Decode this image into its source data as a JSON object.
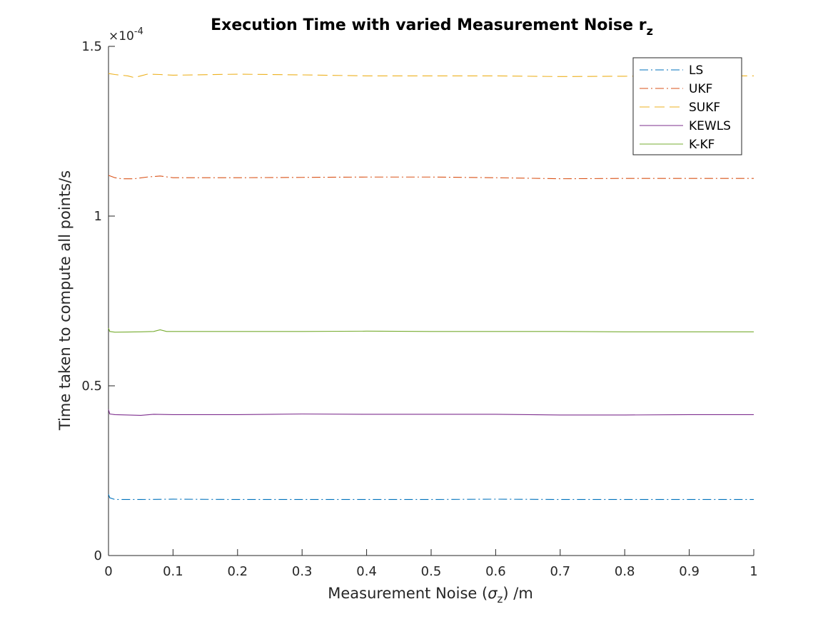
{
  "chart_data": {
    "type": "line",
    "title": "Execution Time with varied Measurement Noise r",
    "title_subscript": "z",
    "xlabel_pre": "Measurement Noise (",
    "xlabel_sigma": "σ",
    "xlabel_sub": "z",
    "xlabel_post": ") /m",
    "ylabel": "Time taken to compute all points/s",
    "exponent_prefix": "×10",
    "exponent_power": "-4",
    "xlim": [
      0,
      1
    ],
    "ylim": [
      0,
      1.5
    ],
    "y_scale_factor": 0.0001,
    "xticks": [
      0,
      0.1,
      0.2,
      0.3,
      0.4,
      0.5,
      0.6,
      0.7,
      0.8,
      0.9,
      1
    ],
    "xtick_labels": [
      "0",
      "0.1",
      "0.2",
      "0.3",
      "0.4",
      "0.5",
      "0.6",
      "0.7",
      "0.8",
      "0.9",
      "1"
    ],
    "yticks": [
      0,
      0.5,
      1,
      1.5
    ],
    "ytick_labels": [
      "0",
      "0.5",
      "1",
      "1.5"
    ],
    "grid": false,
    "legend_position": "top-right",
    "series": [
      {
        "name": "LS",
        "color": "#0072BD",
        "dash": "dashdot",
        "x": [
          0,
          0.002,
          0.01,
          0.05,
          0.1,
          0.2,
          0.3,
          0.4,
          0.5,
          0.6,
          0.7,
          0.8,
          0.9,
          1
        ],
        "y": [
          0.18,
          0.17,
          0.165,
          0.165,
          0.166,
          0.165,
          0.165,
          0.165,
          0.165,
          0.166,
          0.165,
          0.165,
          0.165,
          0.165
        ]
      },
      {
        "name": "UKF",
        "color": "#D95319",
        "dash": "dashdot",
        "x": [
          0,
          0.01,
          0.02,
          0.04,
          0.06,
          0.08,
          0.1,
          0.2,
          0.3,
          0.4,
          0.5,
          0.6,
          0.7,
          0.8,
          0.9,
          1
        ],
        "y": [
          1.12,
          1.113,
          1.11,
          1.11,
          1.115,
          1.118,
          1.113,
          1.113,
          1.114,
          1.115,
          1.115,
          1.113,
          1.11,
          1.111,
          1.111,
          1.111
        ]
      },
      {
        "name": "SUKF",
        "color": "#EDB120",
        "dash": "dashed",
        "x": [
          0,
          0.01,
          0.02,
          0.03,
          0.04,
          0.05,
          0.06,
          0.08,
          0.1,
          0.2,
          0.3,
          0.4,
          0.5,
          0.6,
          0.7,
          0.8,
          0.9,
          1
        ],
        "y": [
          1.42,
          1.417,
          1.415,
          1.413,
          1.408,
          1.413,
          1.418,
          1.417,
          1.415,
          1.418,
          1.416,
          1.413,
          1.413,
          1.413,
          1.411,
          1.412,
          1.413,
          1.413
        ]
      },
      {
        "name": "KEWLS",
        "color": "#7E2F8E",
        "dash": "solid",
        "x": [
          0,
          0.002,
          0.01,
          0.05,
          0.07,
          0.1,
          0.2,
          0.3,
          0.4,
          0.5,
          0.6,
          0.7,
          0.8,
          0.9,
          1
        ],
        "y": [
          0.43,
          0.417,
          0.415,
          0.413,
          0.416,
          0.415,
          0.415,
          0.417,
          0.416,
          0.416,
          0.416,
          0.414,
          0.414,
          0.415,
          0.415
        ]
      },
      {
        "name": "K-KF",
        "color": "#77AC30",
        "dash": "solid",
        "x": [
          0,
          0.002,
          0.01,
          0.05,
          0.07,
          0.08,
          0.09,
          0.1,
          0.2,
          0.3,
          0.4,
          0.5,
          0.6,
          0.7,
          0.8,
          0.9,
          1
        ],
        "y": [
          0.67,
          0.66,
          0.658,
          0.659,
          0.66,
          0.665,
          0.66,
          0.66,
          0.66,
          0.66,
          0.661,
          0.66,
          0.66,
          0.66,
          0.659,
          0.659,
          0.659
        ]
      }
    ]
  }
}
